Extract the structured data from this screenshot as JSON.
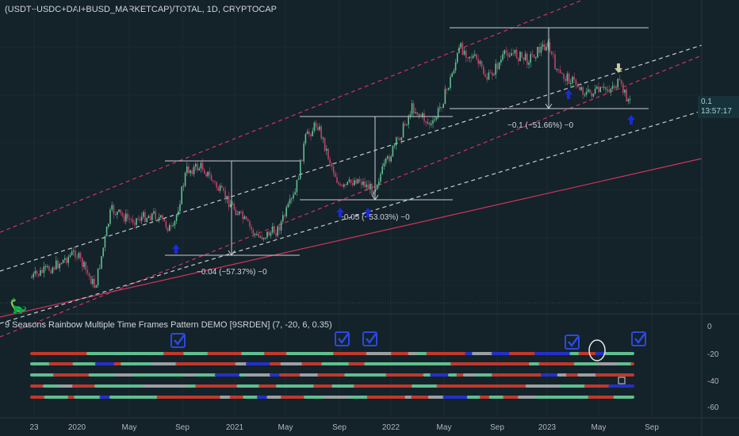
{
  "header": {
    "symbol": "(USDT+USDC+DAI+BUSD_MARKETCAP)/TOTAL, 1D, CRYPTOCAP"
  },
  "price_badge": {
    "value": "0.1",
    "countdown": "13:57:17"
  },
  "indicator": {
    "title": "9 Seasons Rainbow Multiple Time Frames Pattern DEMO [9SRDEN] (7, -20, 6, 0.35)",
    "y_ticks": [
      "0",
      "-20",
      "-40",
      "-60"
    ]
  },
  "time_axis": [
    "23",
    "2020",
    "May",
    "Sep",
    "2021",
    "May",
    "Sep",
    "2022",
    "May",
    "Sep",
    "2023",
    "May",
    "Sep"
  ],
  "measurements": [
    {
      "label": "−0.04 (−57.37%) −0"
    },
    {
      "label": "−0.05 (−53.03%) −0"
    },
    {
      "label": "−0.1 (−51.66%) −0"
    }
  ],
  "colors": {
    "background": "#14222a",
    "candle_up": "#5fbf8f",
    "candle_down": "#c0406a",
    "channel_outer": "#d0345a",
    "channel_inner": "#c8ccd0",
    "arrow_up": "#1a2bd8",
    "arrow_down": "#c9c9a0",
    "checkbox": "#2a49e0"
  },
  "chart_data": [
    {
      "type": "candlestick",
      "title": "(USDT+USDC+DAI+BUSD_MARKETCAP)/TOTAL, 1D, CRYPTOCAP",
      "x": [
        "Oct 2019",
        "Jan 2020",
        "May 2020",
        "Sep 2020",
        "Jan 2021",
        "May 2021",
        "Sep 2021",
        "Jan 2022",
        "May 2022",
        "Sep 2022",
        "Jan 2023",
        "May 2023",
        "Jul 2023"
      ],
      "y": [
        0.02,
        0.03,
        0.04,
        0.055,
        0.05,
        0.075,
        0.07,
        0.09,
        0.16,
        0.175,
        0.17,
        0.12,
        0.1
      ],
      "last_value": 0.1
    },
    {
      "type": "line",
      "title": "9 Seasons Rainbow Multiple Time Frames Pattern DEMO [9SRDEN] (7, -20, 6, 0.35)",
      "y_ticks": [
        0,
        -20,
        -40,
        -60
      ],
      "ylim": [
        -65,
        5
      ],
      "series_levels": [
        -20,
        -28,
        -36,
        -44,
        -52
      ]
    }
  ]
}
